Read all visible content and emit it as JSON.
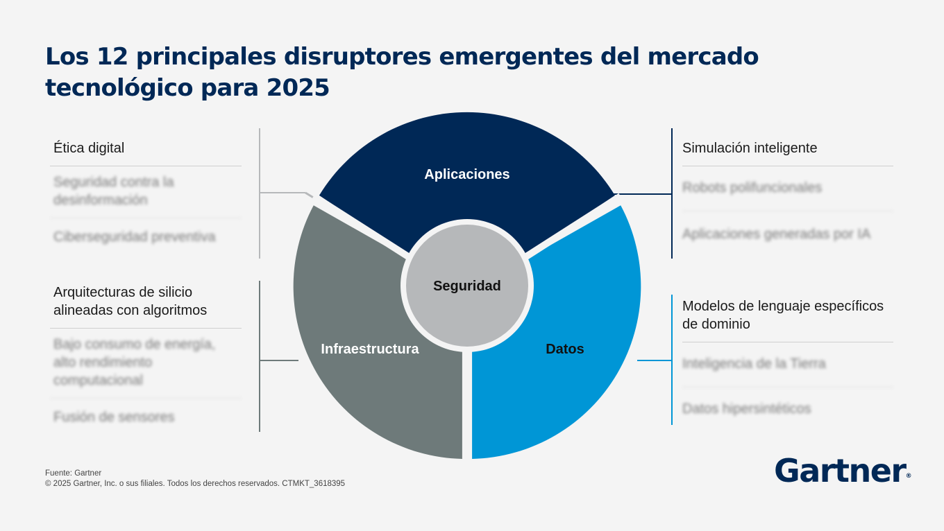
{
  "title": "Los 12 principales disruptores emergentes del mercado tecnológico para 2025",
  "center": "Seguridad",
  "segments": {
    "applications": "Aplicaciones",
    "infrastructure": "Infraestructura",
    "data": "Datos"
  },
  "lists": {
    "security": [
      "Ética digital",
      "Seguridad contra la desinformación",
      "Ciberseguridad preventiva"
    ],
    "infrastructure": [
      "Arquitecturas de silicio alineadas con algoritmos",
      "Bajo consumo de energía, alto rendimiento computacional",
      "Fusión de sensores"
    ],
    "applications": [
      "Simulación inteligente",
      "Robots polifuncionales",
      "Aplicaciones generadas por IA"
    ],
    "data": [
      "Modelos de lenguaje específicos de dominio",
      "Inteligencia de la Tierra",
      "Datos hipersintéticos"
    ]
  },
  "colors": {
    "applications": "#002856",
    "infrastructure": "#6e7a7a",
    "data": "#0096d6",
    "security": "#b6b8ba"
  },
  "footer": {
    "source": "Fuente: Gartner",
    "copyright": "© 2025 Gartner, Inc. o sus filiales. Todos los derechos reservados. CTMKT_3618395"
  },
  "logo": "Gartner"
}
